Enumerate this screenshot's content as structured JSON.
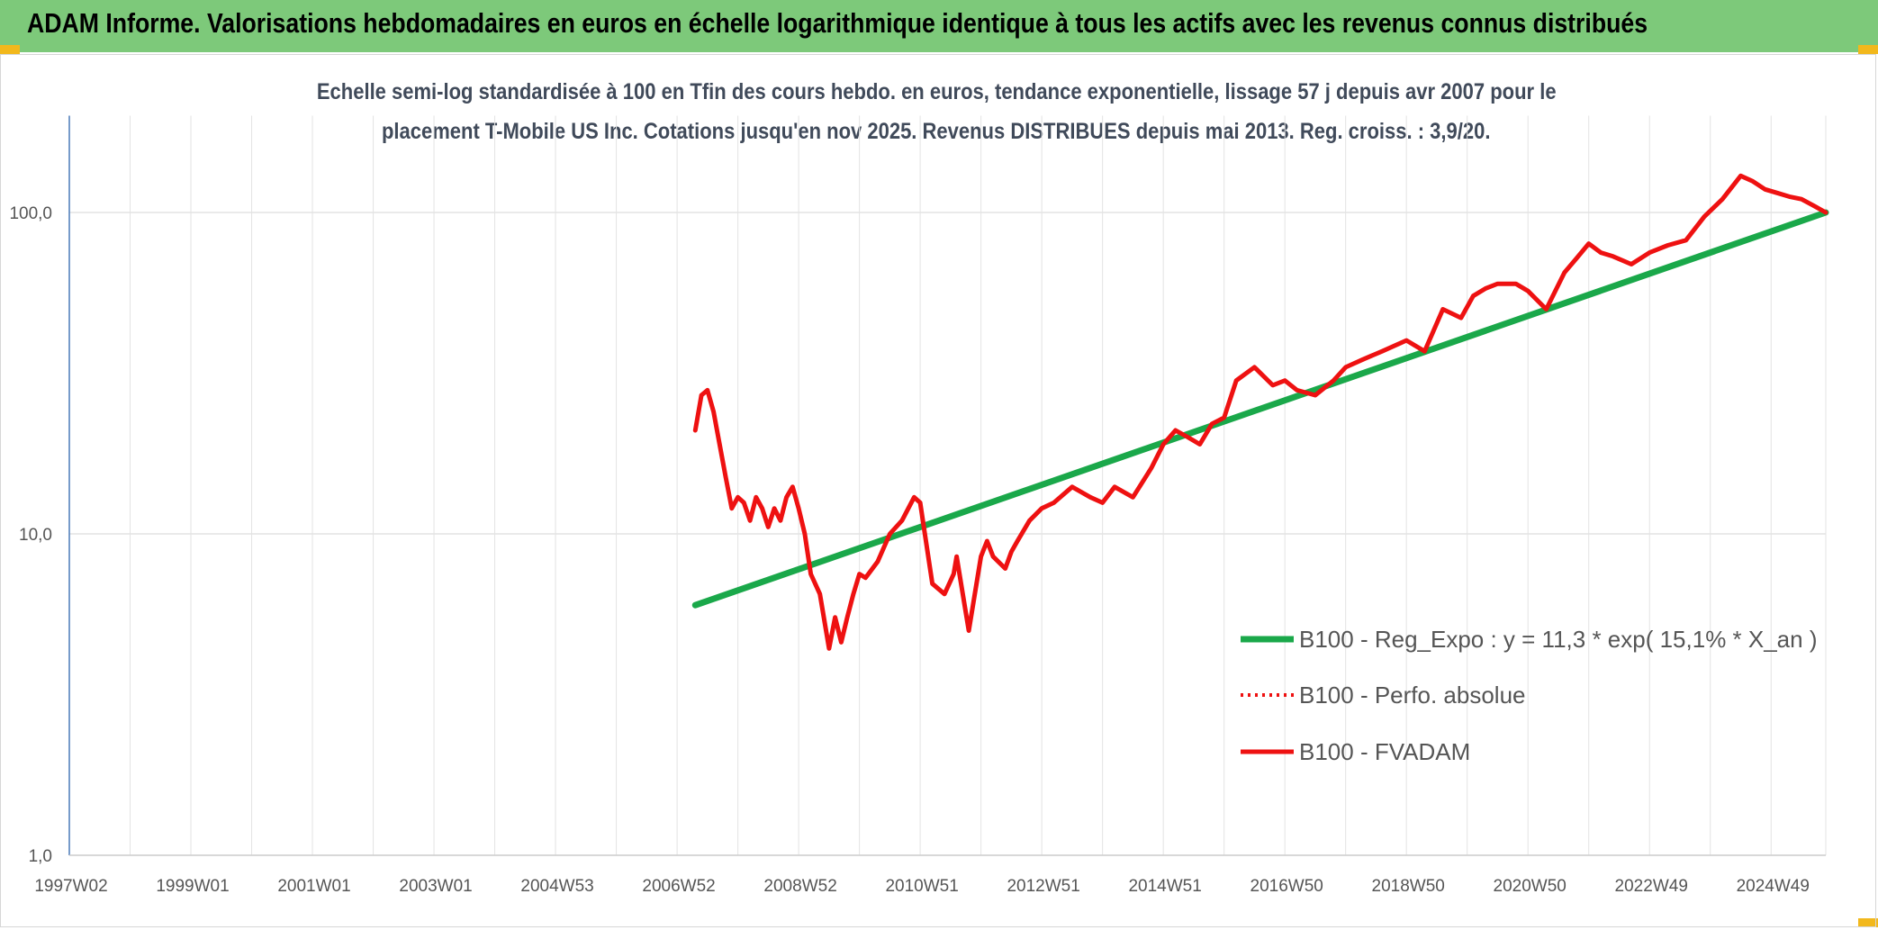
{
  "header": {
    "title": "ADAM Informe. Valorisations hebdomadaires en euros en échelle logarithmique identique à tous les actifs avec les revenus connus distribués"
  },
  "colors": {
    "header_bg": "#7dc97a",
    "trend": "#1aa84a",
    "fvadam": "#ee1111",
    "perfo": "#ee1111",
    "grid": "#e3e3e3",
    "axis": "#4a7ab8"
  },
  "chart_data": {
    "type": "line",
    "title_line1": "Echelle semi-log standardisée à 100 en Tfin des cours hebdo. en euros, tendance exponentielle, lissage 57 j depuis avr 2007 pour le",
    "title_line2": "placement T-Mobile US Inc. Cotations jusqu'en nov 2025. Revenus DISTRIBUES depuis mai 2013. Reg. croiss. : 3,9/20.",
    "y_scale": "log",
    "ylim": [
      1,
      200
    ],
    "y_ticks": [
      {
        "value": 1,
        "label": "1,0"
      },
      {
        "value": 10,
        "label": "10,0"
      },
      {
        "value": 100,
        "label": "100,0"
      }
    ],
    "xlim": [
      1997.0,
      2025.9
    ],
    "x_ticks": [
      {
        "value": 1997.0,
        "label": "1997W02"
      },
      {
        "value": 1999.0,
        "label": "1999W01"
      },
      {
        "value": 2001.0,
        "label": "2001W01"
      },
      {
        "value": 2003.0,
        "label": "2003W01"
      },
      {
        "value": 2005.0,
        "label": "2004W53"
      },
      {
        "value": 2007.0,
        "label": "2006W52"
      },
      {
        "value": 2009.0,
        "label": "2008W52"
      },
      {
        "value": 2011.0,
        "label": "2010W51"
      },
      {
        "value": 2013.0,
        "label": "2012W51"
      },
      {
        "value": 2015.0,
        "label": "2014W51"
      },
      {
        "value": 2017.0,
        "label": "2016W50"
      },
      {
        "value": 2019.0,
        "label": "2018W50"
      },
      {
        "value": 2021.0,
        "label": "2020W50"
      },
      {
        "value": 2023.0,
        "label": "2022W49"
      },
      {
        "value": 2025.0,
        "label": "2024W49"
      }
    ],
    "legend_position": "right",
    "series": [
      {
        "name": "B100 - Reg_Expo : y = 11,3 * exp( 15,1% *  X_an )",
        "style": "solid-green",
        "x": [
          2007.3,
          2025.9
        ],
        "y": [
          6.0,
          100.0
        ]
      },
      {
        "name": "B100 - Perfo. absolue",
        "style": "dotted-red",
        "x": [],
        "y": []
      },
      {
        "name": "B100 - FVADAM",
        "style": "solid-red",
        "x": [
          2007.3,
          2007.4,
          2007.5,
          2007.6,
          2007.7,
          2007.8,
          2007.9,
          2008.0,
          2008.1,
          2008.2,
          2008.3,
          2008.4,
          2008.5,
          2008.6,
          2008.7,
          2008.8,
          2008.9,
          2009.0,
          2009.1,
          2009.2,
          2009.35,
          2009.5,
          2009.6,
          2009.7,
          2009.8,
          2009.9,
          2010.0,
          2010.1,
          2010.3,
          2010.5,
          2010.7,
          2010.9,
          2011.0,
          2011.2,
          2011.4,
          2011.55,
          2011.6,
          2011.7,
          2011.8,
          2012.0,
          2012.1,
          2012.2,
          2012.4,
          2012.5,
          2012.6,
          2012.8,
          2013.0,
          2013.2,
          2013.5,
          2013.8,
          2014.0,
          2014.2,
          2014.5,
          2014.8,
          2015.0,
          2015.2,
          2015.4,
          2015.6,
          2015.8,
          2016.0,
          2016.2,
          2016.5,
          2016.8,
          2017.0,
          2017.2,
          2017.5,
          2017.8,
          2018.0,
          2018.3,
          2018.6,
          2019.0,
          2019.3,
          2019.6,
          2019.9,
          2020.1,
          2020.3,
          2020.5,
          2020.8,
          2021.0,
          2021.3,
          2021.6,
          2021.8,
          2022.0,
          2022.2,
          2022.4,
          2022.7,
          2023.0,
          2023.3,
          2023.6,
          2023.9,
          2024.2,
          2024.5,
          2024.7,
          2024.9,
          2025.1,
          2025.3,
          2025.5,
          2025.7,
          2025.9
        ],
        "y": [
          21,
          27,
          28,
          24,
          19,
          15,
          12,
          13,
          12.5,
          11,
          13,
          12,
          10.5,
          12,
          11,
          13,
          14,
          12,
          10,
          7.5,
          6.5,
          4.4,
          5.5,
          4.6,
          5.5,
          6.5,
          7.5,
          7.3,
          8.2,
          10,
          11,
          13,
          12.5,
          7,
          6.5,
          7.5,
          8.5,
          6.5,
          5.0,
          8.5,
          9.5,
          8.5,
          7.8,
          8.8,
          9.5,
          11,
          12,
          12.5,
          14,
          13,
          12.5,
          14,
          13,
          16,
          19,
          21,
          20,
          19,
          22,
          23,
          30,
          33,
          29,
          30,
          28,
          27,
          30,
          33,
          35,
          37,
          40,
          37,
          50,
          47,
          55,
          58,
          60,
          60,
          57,
          50,
          65,
          72,
          80,
          75,
          73,
          69,
          75,
          79,
          82,
          97,
          110,
          130,
          125,
          118,
          115,
          112,
          110,
          105,
          100
        ]
      }
    ]
  }
}
